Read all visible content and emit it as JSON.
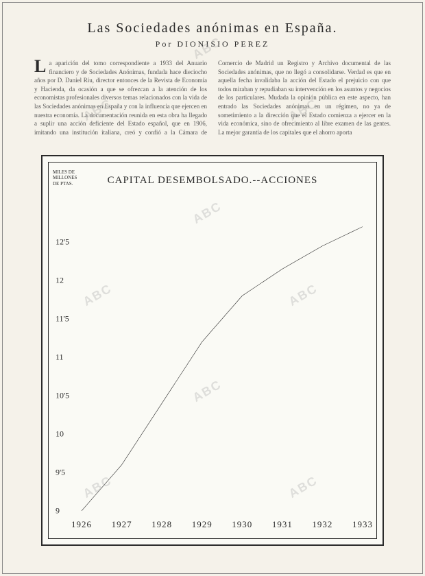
{
  "article": {
    "title": "Las Sociedades anónimas en España.",
    "author_line": "Por DIONISIO PEREZ",
    "drop_cap": "L",
    "body": "a aparición del tomo correspondiente a 1933 del Anuario financiero y de Sociedades Anónimas, fundada hace dieciocho años por D. Daniel Ríu, director entonces de la Revista de Economía y Hacienda, da ocasión a que se ofrezcan a la atención de los economistas profesionales diversos temas relacionados con la vida de las Sociedades anónimas en España y con la influencia que ejercen en nuestra economía. La documentación reunida en esta obra ha llegado a suplir una acción deficiente del Estado español, que en 1906, imitando una institución italiana, creó y confió a la Cámara de Comercio de Madrid un Registro y Archivo documental de las Sociedades anónimas, que no llegó a consolidarse. Verdad es que en aquella fecha invalidaba la acción del Estado el prejuicio con que todos miraban y repudiaban su intervención en los asuntos y negocios de los particulares. Mudada la opinión pública en este aspecto, han entrado las Sociedades anónimas en un régimen, no ya de sometimiento a la dirección que el Estado comienza a ejercer en la vida económica, sino de ofrecimiento al libre examen de las gentes. La mejor garantía de los capitales que el ahorro aporta"
  },
  "chart": {
    "title": "CAPITAL DESEMBOLSADO.--ACCIONES",
    "y_axis_label": "MILES DE MILLONES DE PTAS.",
    "y_min": 9,
    "y_max": 13,
    "y_ticks": [
      "9",
      "9'5",
      "10",
      "10'5",
      "11",
      "11'5",
      "12",
      "12'5"
    ],
    "y_tick_values": [
      9,
      9.5,
      10,
      10.5,
      11,
      11.5,
      12,
      12.5
    ],
    "x_labels": [
      "1926",
      "1927",
      "1928",
      "1929",
      "1930",
      "1931",
      "1932",
      "1933"
    ],
    "series": [
      {
        "x": 1926,
        "y": 9.0
      },
      {
        "x": 1927,
        "y": 9.6
      },
      {
        "x": 1928,
        "y": 10.4
      },
      {
        "x": 1929,
        "y": 11.2
      },
      {
        "x": 1930,
        "y": 11.8
      },
      {
        "x": 1931,
        "y": 12.15
      },
      {
        "x": 1932,
        "y": 12.45
      },
      {
        "x": 1933,
        "y": 12.7
      }
    ],
    "line_color": "#2a2a2a",
    "line_width": 2,
    "background_color": "#fafaf5",
    "border_color": "#2a2a2a"
  },
  "watermark_text": "ABC"
}
